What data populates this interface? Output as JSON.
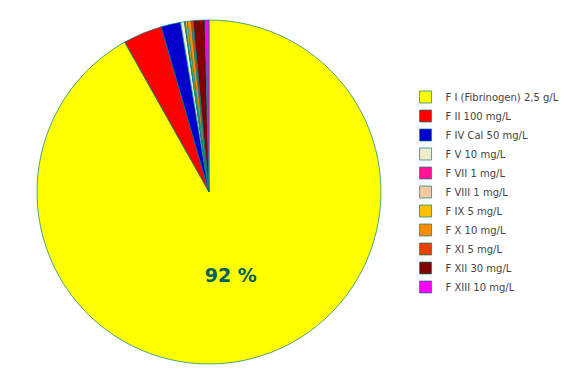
{
  "chart_data": {
    "type": "pie",
    "categories": [
      "F I (Fibrinogen) 2,5 g/L",
      "F II 100 mg/L",
      "F IV Cal 50 mg/L",
      "F V 10 mg/L",
      "F VII 1 mg/L",
      "F VIII 1 mg/L",
      "F IX 5 mg/L",
      "F X 10 mg/L",
      "F XI 5 mg/L",
      "F XII 30 mg/L",
      "F XIII 10 mg/L"
    ],
    "values": [
      2500,
      100,
      50,
      10,
      1,
      1,
      5,
      10,
      5,
      30,
      10
    ],
    "colors": [
      "#ffff00",
      "#ff0000",
      "#0000cc",
      "#eeeecc",
      "#ff1493",
      "#f5c9a0",
      "#ffc000",
      "#ff8c00",
      "#e84000",
      "#800000",
      "#ff00ff"
    ],
    "annotation": {
      "text": "92 %",
      "color": "#006060"
    },
    "legend": "right"
  }
}
